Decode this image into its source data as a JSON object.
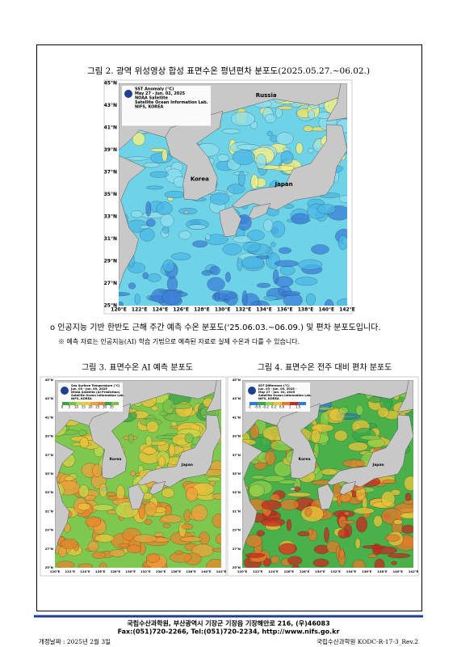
{
  "figure2": {
    "caption": "그림 2. 광역 위성영상 합성 표면수온 평년편차 분포도(2025.05.27.~06.02.)",
    "legend": [
      "SST Anomaly (°C)",
      "May 27 - Jun. 02, 2025",
      "NOAA Satellite",
      "Satellite Ocean Information Lab.",
      "NIFS, KOREA"
    ],
    "places": [
      "Russia",
      "Korea",
      "Japan"
    ],
    "lat_labels": [
      "45°N",
      "43°N",
      "41°N",
      "39°N",
      "37°N",
      "35°N",
      "33°N",
      "31°N",
      "29°N",
      "27°N",
      "25°N"
    ],
    "lon_labels": [
      "120°E",
      "122°E",
      "124°E",
      "126°E",
      "128°E",
      "130°E",
      "132°E",
      "134°E",
      "136°E",
      "138°E",
      "140°E",
      "142°E"
    ]
  },
  "bullet": "o 인공지능 기반 한반도 근해 주간 예측 수온 분포도('25.06.03.~06.09.) 및 편차 분포도입니다.",
  "note": "※ 예측 자료는 인공지능(AI) 학습 기법으로 예측된 자료로 실제 수온과 다를 수 있습니다.",
  "figure3": {
    "caption": "그림 3. 표면수온 AI 예측 분포도",
    "legend": [
      "Sea Surface Temperature (°C)",
      "Jun. 03 - Jun. 09, 2025",
      "NOAA Satellite (AI Prediction)",
      "Satellite Ocean Information Lab.",
      "NIFS, KOREA"
    ],
    "colorbar": [
      0,
      5,
      10,
      15,
      20,
      25,
      30,
      35
    ],
    "places": [
      "Korea",
      "Japan"
    ]
  },
  "figure4": {
    "caption": "그림 4. 표면수온 전주 대비 편차 분포도",
    "legend": [
      "SST Difference (°C)",
      "Jun. 03 - Jun. 09, 2025 -",
      "May 27 - Jun. 02, 2025",
      "Satellite Ocean Information Lab.",
      "NIFS, KOREA"
    ],
    "colorbar": [
      -1.0,
      -0.6,
      -0.2,
      0.2,
      0.6,
      1.0,
      1.5
    ],
    "places": [
      "Korea",
      "Japan"
    ]
  },
  "footer": {
    "line1": "국립수산과학원, 부산광역시 기장군 기장읍 기장해안로 216, (우)46083",
    "line2": "Fax:(051)720-2266, Tel:(051)720-2234, http://www.nifs.go.kr"
  },
  "revision_date": "개정날짜 : 2025년 2월 3일",
  "doc_code": "국립수산과학원 KODC-R-17-3_Rev.2"
}
